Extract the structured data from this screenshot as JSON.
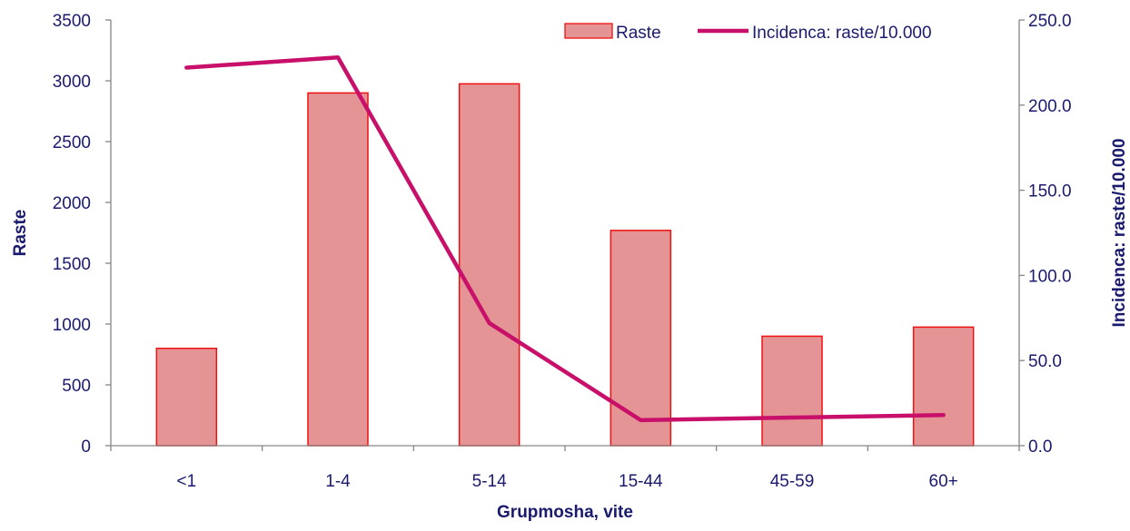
{
  "chart_data": {
    "type": "bar+line",
    "categories": [
      "<1",
      "1-4",
      "5-14",
      "15-44",
      "45-59",
      "60+"
    ],
    "series": [
      {
        "name": "Raste",
        "type": "bar",
        "axis": "left",
        "values": [
          800,
          2900,
          2975,
          1770,
          900,
          975
        ]
      },
      {
        "name": "Incidenca: raste/10.000",
        "type": "line",
        "axis": "right",
        "values": [
          222.0,
          228.0,
          72.0,
          15.0,
          16.5,
          18.0
        ]
      }
    ],
    "xlabel": "Grupmosha, vite",
    "ylabel": "Raste",
    "y2label": "Incidenca: raste/10.000",
    "ylim": [
      0,
      3500
    ],
    "y2lim": [
      0,
      250
    ],
    "yticks": [
      "0",
      "500",
      "1000",
      "1500",
      "2000",
      "2500",
      "3000",
      "3500"
    ],
    "y2ticks": [
      "0.0",
      "50.0",
      "100.0",
      "150.0",
      "200.0",
      "250.0"
    ],
    "legend_position": "top-right",
    "grid": false,
    "colors": {
      "bar_fill": "#e49494",
      "bar_stroke": "#ee1111",
      "line": "#c8106a",
      "axis": "#868686",
      "text": "#1a1a6e"
    }
  }
}
